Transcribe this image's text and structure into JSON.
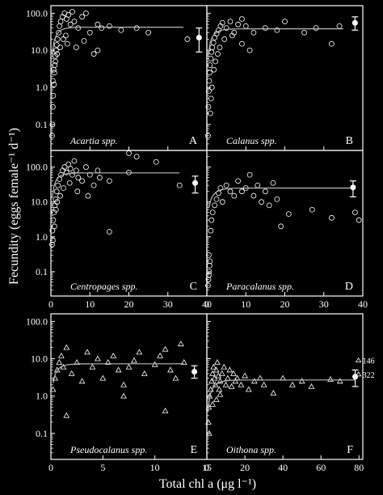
{
  "figure": {
    "ylabel": "Fecundity (eggs female⁻¹ d⁻¹)",
    "xlabel": "Total chl a (μg l⁻¹)"
  },
  "chart_data": [
    {
      "type": "scatter",
      "panel": "A",
      "species": "Acartia spp.",
      "marker": "circle",
      "xlim": [
        0,
        40
      ],
      "ylim": [
        0.02,
        160
      ],
      "yscale": "log",
      "yticks": [
        "100.0",
        "10.0",
        "1.0",
        "0.1"
      ],
      "xticks": [],
      "points": [
        [
          0.3,
          0.05
        ],
        [
          0.4,
          0.1
        ],
        [
          0.5,
          0.3
        ],
        [
          0.6,
          0.6
        ],
        [
          0.8,
          1.2
        ],
        [
          0.9,
          2.5
        ],
        [
          1.0,
          4
        ],
        [
          1.1,
          7
        ],
        [
          1.3,
          10
        ],
        [
          1.5,
          14
        ],
        [
          1.7,
          20
        ],
        [
          2.0,
          30
        ],
        [
          2.2,
          45
        ],
        [
          2.5,
          60
        ],
        [
          3,
          80
        ],
        [
          3.5,
          100
        ],
        [
          4,
          70
        ],
        [
          4.5,
          90
        ],
        [
          5,
          50
        ],
        [
          5.5,
          110
        ],
        [
          6,
          60
        ],
        [
          7,
          40
        ],
        [
          8,
          80
        ],
        [
          9,
          100
        ],
        [
          10,
          30
        ],
        [
          11,
          8
        ],
        [
          12,
          50
        ],
        [
          13,
          40
        ],
        [
          15,
          45
        ],
        [
          18,
          35
        ],
        [
          22,
          40
        ],
        [
          25,
          30
        ],
        [
          35,
          20
        ],
        [
          0.5,
          1.5
        ],
        [
          0.7,
          3
        ],
        [
          1.2,
          5
        ],
        [
          1.6,
          8
        ],
        [
          2.4,
          12
        ],
        [
          3.2,
          20
        ],
        [
          3.8,
          25
        ],
        [
          4.2,
          15
        ],
        [
          6.5,
          12
        ],
        [
          8.5,
          18
        ],
        [
          12,
          10
        ]
      ],
      "curve": {
        "x_start": 0.3,
        "x_end": 34,
        "plateau": 42
      },
      "mean_marker": {
        "x": 38,
        "mean": 22,
        "low": 9,
        "high": 40
      }
    },
    {
      "type": "scatter",
      "panel": "B",
      "species": "Calanus spp.",
      "marker": "circle",
      "xlim": [
        0,
        40
      ],
      "ylim": [
        0.02,
        160
      ],
      "yscale": "log",
      "yticks": [],
      "xticks": [],
      "points": [
        [
          0.3,
          0.05
        ],
        [
          0.4,
          0.3
        ],
        [
          0.5,
          0.8
        ],
        [
          0.6,
          1.5
        ],
        [
          0.7,
          2.5
        ],
        [
          0.8,
          4
        ],
        [
          1.0,
          6
        ],
        [
          1.2,
          9
        ],
        [
          1.4,
          12
        ],
        [
          1.7,
          16
        ],
        [
          2,
          22
        ],
        [
          2.5,
          28
        ],
        [
          3,
          35
        ],
        [
          3.5,
          45
        ],
        [
          4,
          55
        ],
        [
          5,
          40
        ],
        [
          6,
          60
        ],
        [
          7,
          30
        ],
        [
          8,
          50
        ],
        [
          9,
          70
        ],
        [
          10,
          45
        ],
        [
          12,
          30
        ],
        [
          15,
          40
        ],
        [
          18,
          35
        ],
        [
          20,
          60
        ],
        [
          25,
          30
        ],
        [
          28,
          40
        ],
        [
          32,
          15
        ],
        [
          34,
          45
        ],
        [
          0.9,
          0.2
        ],
        [
          1.1,
          0.5
        ],
        [
          1.3,
          1
        ],
        [
          1.8,
          3
        ],
        [
          2.2,
          5
        ],
        [
          2.8,
          8
        ],
        [
          3.3,
          12
        ],
        [
          4.5,
          20
        ],
        [
          6.5,
          25
        ],
        [
          9,
          15
        ],
        [
          11,
          10
        ]
      ],
      "curve": {
        "x_start": 0.3,
        "x_end": 35,
        "plateau": 38
      },
      "mean_marker": {
        "x": 38,
        "mean": 55,
        "low": 35,
        "high": 80
      }
    },
    {
      "type": "scatter",
      "panel": "C",
      "species": "Centropages spp.",
      "marker": "circle",
      "xlim": [
        0,
        40
      ],
      "ylim": [
        0.02,
        300
      ],
      "yscale": "log",
      "yticks": [
        "100.0",
        "10.0",
        "1.0",
        "0.1"
      ],
      "xticks": [
        "0",
        "10",
        "20",
        "30",
        "40"
      ],
      "points": [
        [
          0.3,
          0.6
        ],
        [
          0.4,
          1.5
        ],
        [
          0.6,
          3
        ],
        [
          0.8,
          5
        ],
        [
          1.0,
          8
        ],
        [
          1.2,
          12
        ],
        [
          1.5,
          20
        ],
        [
          1.8,
          30
        ],
        [
          2.2,
          45
        ],
        [
          2.6,
          60
        ],
        [
          3,
          80
        ],
        [
          3.5,
          100
        ],
        [
          4,
          70
        ],
        [
          4.5,
          120
        ],
        [
          5,
          90
        ],
        [
          5.5,
          60
        ],
        [
          6,
          150
        ],
        [
          6.5,
          80
        ],
        [
          7,
          50
        ],
        [
          8,
          40
        ],
        [
          9,
          100
        ],
        [
          10,
          60
        ],
        [
          11,
          30
        ],
        [
          12,
          80
        ],
        [
          12.5,
          50
        ],
        [
          15,
          40
        ],
        [
          20,
          70
        ],
        [
          22,
          200
        ],
        [
          27,
          140
        ],
        [
          33,
          30
        ],
        [
          0.5,
          0.8
        ],
        [
          0.9,
          2
        ],
        [
          1.3,
          6
        ],
        [
          1.6,
          10
        ],
        [
          2.4,
          15
        ],
        [
          3.2,
          25
        ],
        [
          4.8,
          35
        ],
        [
          6.8,
          20
        ],
        [
          9.5,
          15
        ],
        [
          15,
          1.4
        ],
        [
          20,
          250
        ]
      ],
      "curve": {
        "x_start": 0.3,
        "x_end": 33,
        "plateau": 68
      },
      "mean_marker": {
        "x": 37,
        "mean": 35,
        "low": 18,
        "high": 55
      }
    },
    {
      "type": "scatter",
      "panel": "D",
      "species": "Paracalanus spp.",
      "marker": "circle",
      "xlim": [
        0,
        40
      ],
      "ylim": [
        0.02,
        300
      ],
      "yscale": "log",
      "yticks": [],
      "xticks": [
        "0",
        "10",
        "20",
        "30",
        "40"
      ],
      "points": [
        [
          0.3,
          0.04
        ],
        [
          0.4,
          0.06
        ],
        [
          0.5,
          0.08
        ],
        [
          0.6,
          0.1
        ],
        [
          0.7,
          0.15
        ],
        [
          0.8,
          0.2
        ],
        [
          0.5,
          0.3
        ],
        [
          1,
          1.5
        ],
        [
          1.2,
          3
        ],
        [
          1.5,
          5
        ],
        [
          2,
          8
        ],
        [
          2.5,
          12
        ],
        [
          3,
          18
        ],
        [
          3.5,
          25
        ],
        [
          4,
          10
        ],
        [
          5,
          30
        ],
        [
          6,
          20
        ],
        [
          7,
          15
        ],
        [
          8,
          40
        ],
        [
          9,
          20
        ],
        [
          10,
          25
        ],
        [
          11,
          60
        ],
        [
          12,
          15
        ],
        [
          13,
          30
        ],
        [
          14,
          10
        ],
        [
          15,
          20
        ],
        [
          16,
          8
        ],
        [
          17,
          35
        ],
        [
          18,
          12
        ],
        [
          19,
          2
        ],
        [
          21,
          4.5
        ],
        [
          27,
          6
        ],
        [
          32,
          3.5
        ],
        [
          38,
          5
        ],
        [
          39,
          3
        ]
      ],
      "curve": {
        "x_start": 0.5,
        "x_end": 38,
        "plateau": 25
      },
      "mean_marker": {
        "x": 37.5,
        "mean": 26,
        "low": 14,
        "high": 40
      }
    },
    {
      "type": "scatter",
      "panel": "E",
      "species": "Pseudocalanus spp.",
      "marker": "triangle",
      "xlim": [
        0,
        15
      ],
      "ylim": [
        0.02,
        160
      ],
      "yscale": "log",
      "yticks": [
        "100.0",
        "10.0",
        "1.0",
        "0.1"
      ],
      "xticks": [
        "0",
        "5",
        "10",
        "15"
      ],
      "points": [
        [
          0.2,
          1.5
        ],
        [
          0.4,
          3
        ],
        [
          0.6,
          5
        ],
        [
          0.8,
          8
        ],
        [
          1,
          12
        ],
        [
          1.2,
          6
        ],
        [
          1.5,
          20
        ],
        [
          2,
          4
        ],
        [
          2.5,
          8
        ],
        [
          3,
          2.5
        ],
        [
          3.5,
          15
        ],
        [
          4,
          6
        ],
        [
          4.5,
          10
        ],
        [
          5,
          3
        ],
        [
          5.5,
          8
        ],
        [
          6,
          12
        ],
        [
          6.5,
          5
        ],
        [
          7,
          2
        ],
        [
          7.5,
          6
        ],
        [
          8,
          9
        ],
        [
          8.5,
          15
        ],
        [
          9,
          4
        ],
        [
          10,
          7
        ],
        [
          10.5,
          12
        ],
        [
          11,
          18
        ],
        [
          11.5,
          5
        ],
        [
          12,
          3
        ],
        [
          12.5,
          25
        ],
        [
          12.8,
          8
        ],
        [
          1.5,
          0.3
        ],
        [
          7,
          1
        ],
        [
          11,
          0.4
        ]
      ],
      "curve": {
        "x_start": 0.2,
        "x_end": 12.8,
        "plateau": 7.3
      },
      "mean_marker": {
        "x": 13.8,
        "mean": 4.5,
        "low": 3,
        "high": 6.5
      }
    },
    {
      "type": "scatter",
      "panel": "F",
      "species": "Oithona spp.",
      "marker": "triangle",
      "xlim": [
        0,
        82
      ],
      "ylim": [
        0.02,
        160
      ],
      "yscale": "log",
      "yticks": [],
      "xticks": [
        "0",
        "20",
        "40",
        "60",
        "80"
      ],
      "points": [
        [
          1,
          0.5
        ],
        [
          1.5,
          1
        ],
        [
          2,
          1.5
        ],
        [
          2.5,
          2.5
        ],
        [
          3,
          4
        ],
        [
          3.5,
          6
        ],
        [
          4,
          3
        ],
        [
          4.5,
          2
        ],
        [
          5,
          5
        ],
        [
          5.5,
          8
        ],
        [
          6,
          3.5
        ],
        [
          6.5,
          1.5
        ],
        [
          7,
          2.5
        ],
        [
          8,
          4
        ],
        [
          9,
          6
        ],
        [
          10,
          2
        ],
        [
          11,
          3
        ],
        [
          12,
          5
        ],
        [
          13,
          1.8
        ],
        [
          14,
          4
        ],
        [
          15,
          2.5
        ],
        [
          16,
          3
        ],
        [
          18,
          2
        ],
        [
          20,
          3.5
        ],
        [
          22,
          1.5
        ],
        [
          25,
          2.5
        ],
        [
          28,
          3
        ],
        [
          30,
          2
        ],
        [
          35,
          1.2
        ],
        [
          40,
          3
        ],
        [
          45,
          2
        ],
        [
          50,
          2.5
        ],
        [
          55,
          1.8
        ],
        [
          65,
          2.8
        ],
        [
          70,
          2.5
        ],
        [
          0.8,
          0.2
        ],
        [
          1.2,
          0.1
        ],
        [
          3,
          0.6
        ],
        [
          5,
          0.8
        ],
        [
          7,
          1.1
        ]
      ],
      "curve": {
        "x_start": 0.5,
        "x_end": 78,
        "plateau": 2.7
      },
      "mean_marker": {
        "x": 78,
        "mean": 3.3,
        "low": 1.8,
        "high": 5
      },
      "annotations": [
        {
          "text": "146",
          "x": 81,
          "y": 9
        },
        {
          "text": "322",
          "x": 81,
          "y": 3.8
        }
      ]
    }
  ]
}
